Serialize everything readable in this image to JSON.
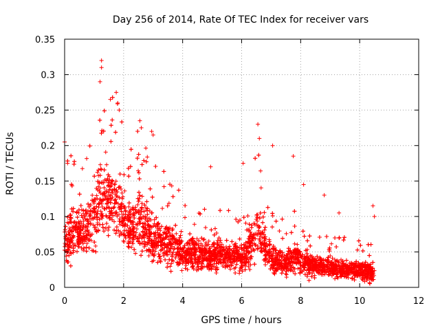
{
  "chart_data": {
    "type": "scatter",
    "title": "Day 256 of 2014, Rate Of TEC Index for receiver vars",
    "xlabel": "GPS time / hours",
    "ylabel": "ROTI / TECUs",
    "xlim": [
      0,
      12
    ],
    "ylim": [
      0,
      0.35
    ],
    "xticks": [
      0,
      2,
      4,
      6,
      8,
      10,
      12
    ],
    "yticks": [
      0,
      0.05,
      0.1,
      0.15,
      0.2,
      0.25,
      0.3,
      0.35
    ],
    "xtick_labels": [
      "0",
      "2",
      "4",
      "6",
      "8",
      "10",
      "12"
    ],
    "ytick_labels": [
      "0",
      "0.05",
      "0.1",
      "0.15",
      "0.2",
      "0.25",
      "0.3",
      "0.35"
    ],
    "grid": true,
    "marker": "+",
    "marker_color": "#ff0000",
    "envelope": {
      "x": [
        0.0,
        0.1,
        0.3,
        0.5,
        0.7,
        0.9,
        1.1,
        1.2,
        1.4,
        1.6,
        1.8,
        2.0,
        2.2,
        2.5,
        2.8,
        3.0,
        3.3,
        3.6,
        4.0,
        4.5,
        5.0,
        5.5,
        6.0,
        6.3,
        6.5,
        6.7,
        6.9,
        7.2,
        7.5,
        7.8,
        8.0,
        8.3,
        8.6,
        9.0,
        9.5,
        10.0,
        10.5
      ],
      "median": [
        0.06,
        0.07,
        0.08,
        0.075,
        0.08,
        0.085,
        0.11,
        0.13,
        0.12,
        0.13,
        0.11,
        0.1,
        0.08,
        0.09,
        0.08,
        0.07,
        0.065,
        0.06,
        0.05,
        0.05,
        0.045,
        0.045,
        0.04,
        0.06,
        0.08,
        0.07,
        0.045,
        0.04,
        0.035,
        0.04,
        0.04,
        0.03,
        0.03,
        0.03,
        0.025,
        0.025,
        0.02
      ],
      "spread": [
        0.035,
        0.05,
        0.05,
        0.045,
        0.05,
        0.06,
        0.08,
        0.09,
        0.08,
        0.08,
        0.07,
        0.06,
        0.05,
        0.06,
        0.05,
        0.05,
        0.045,
        0.04,
        0.035,
        0.035,
        0.03,
        0.03,
        0.03,
        0.04,
        0.05,
        0.045,
        0.03,
        0.03,
        0.025,
        0.03,
        0.03,
        0.025,
        0.02,
        0.02,
        0.02,
        0.02,
        0.02
      ]
    },
    "point_count": 4500,
    "outliers": [
      {
        "x": 1.25,
        "y": 0.32
      },
      {
        "x": 1.25,
        "y": 0.31
      },
      {
        "x": 1.2,
        "y": 0.29
      },
      {
        "x": 1.55,
        "y": 0.265
      },
      {
        "x": 1.75,
        "y": 0.275
      },
      {
        "x": 1.8,
        "y": 0.26
      },
      {
        "x": 1.85,
        "y": 0.25
      },
      {
        "x": 0.0,
        "y": 0.205
      },
      {
        "x": 0.1,
        "y": 0.175
      },
      {
        "x": 2.55,
        "y": 0.235
      },
      {
        "x": 2.6,
        "y": 0.225
      },
      {
        "x": 2.95,
        "y": 0.22
      },
      {
        "x": 3.0,
        "y": 0.215
      },
      {
        "x": 6.55,
        "y": 0.23
      },
      {
        "x": 6.6,
        "y": 0.21
      },
      {
        "x": 6.05,
        "y": 0.175
      },
      {
        "x": 7.75,
        "y": 0.185
      },
      {
        "x": 7.05,
        "y": 0.2
      },
      {
        "x": 4.95,
        "y": 0.17
      },
      {
        "x": 8.1,
        "y": 0.145
      },
      {
        "x": 10.45,
        "y": 0.115
      },
      {
        "x": 10.5,
        "y": 0.1
      },
      {
        "x": 9.3,
        "y": 0.105
      },
      {
        "x": 8.8,
        "y": 0.13
      }
    ],
    "data_end_x": 10.5
  }
}
